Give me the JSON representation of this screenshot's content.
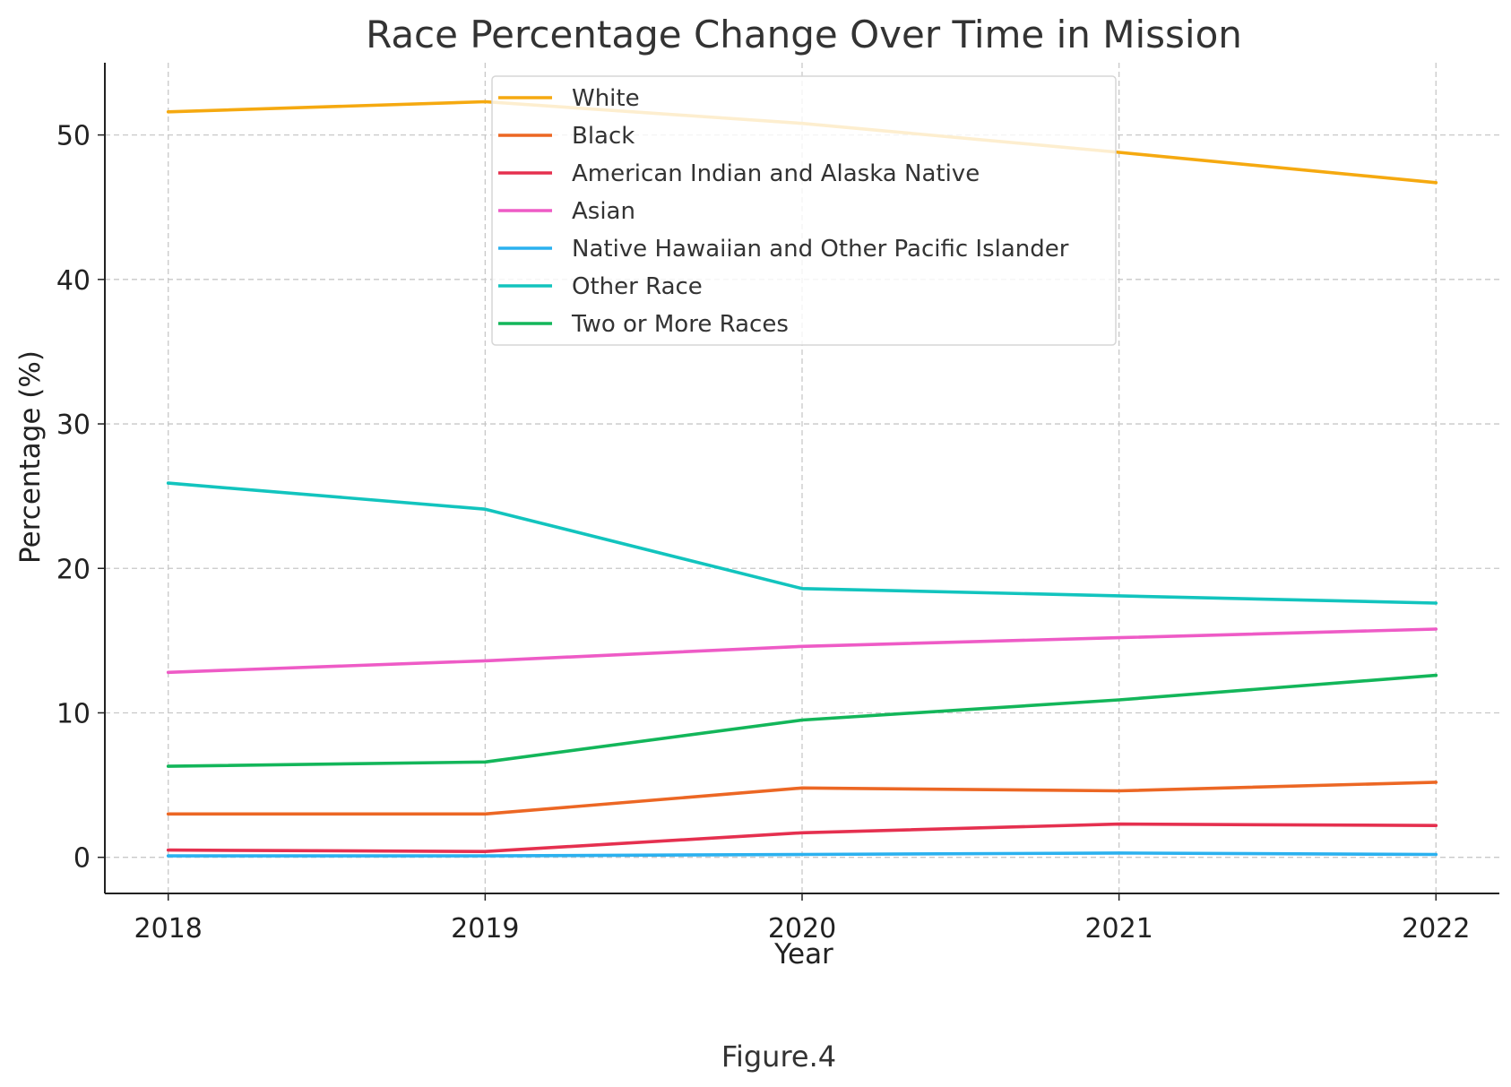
{
  "caption": "Figure.4",
  "chart_data": {
    "type": "line",
    "title": "Race Percentage Change Over Time in Mission",
    "xlabel": "Year",
    "ylabel": "Percentage (%)",
    "x": [
      2018,
      2019,
      2020,
      2021,
      2022
    ],
    "x_tick_labels": [
      "2018",
      "2019",
      "2020",
      "2021",
      "2022"
    ],
    "y_ticks": [
      0,
      10,
      20,
      30,
      40,
      50
    ],
    "y_tick_labels": [
      "0",
      "10",
      "20",
      "30",
      "40",
      "50"
    ],
    "xlim": [
      2017.8,
      2022.2
    ],
    "ylim": [
      -2.5,
      55
    ],
    "grid": true,
    "legend_position": "top-center",
    "series": [
      {
        "name": "White",
        "color": "#f5a910",
        "values": [
          51.6,
          52.3,
          50.8,
          48.8,
          46.7
        ]
      },
      {
        "name": "Black",
        "color": "#ec6724",
        "values": [
          3.0,
          3.0,
          4.8,
          4.6,
          5.2
        ]
      },
      {
        "name": "American Indian and Alaska Native",
        "color": "#e5304f",
        "values": [
          0.5,
          0.4,
          1.7,
          2.3,
          2.2
        ]
      },
      {
        "name": "Asian",
        "color": "#ee5bc6",
        "values": [
          12.8,
          13.6,
          14.6,
          15.2,
          15.8
        ]
      },
      {
        "name": "Native Hawaiian and Other Pacific Islander",
        "color": "#2bb1ef",
        "values": [
          0.1,
          0.1,
          0.2,
          0.3,
          0.2
        ]
      },
      {
        "name": "Other Race",
        "color": "#12c4be",
        "values": [
          25.9,
          24.1,
          18.6,
          18.1,
          17.6
        ]
      },
      {
        "name": "Two or More Races",
        "color": "#13b65a",
        "values": [
          6.3,
          6.6,
          9.5,
          10.9,
          12.6
        ]
      }
    ]
  }
}
